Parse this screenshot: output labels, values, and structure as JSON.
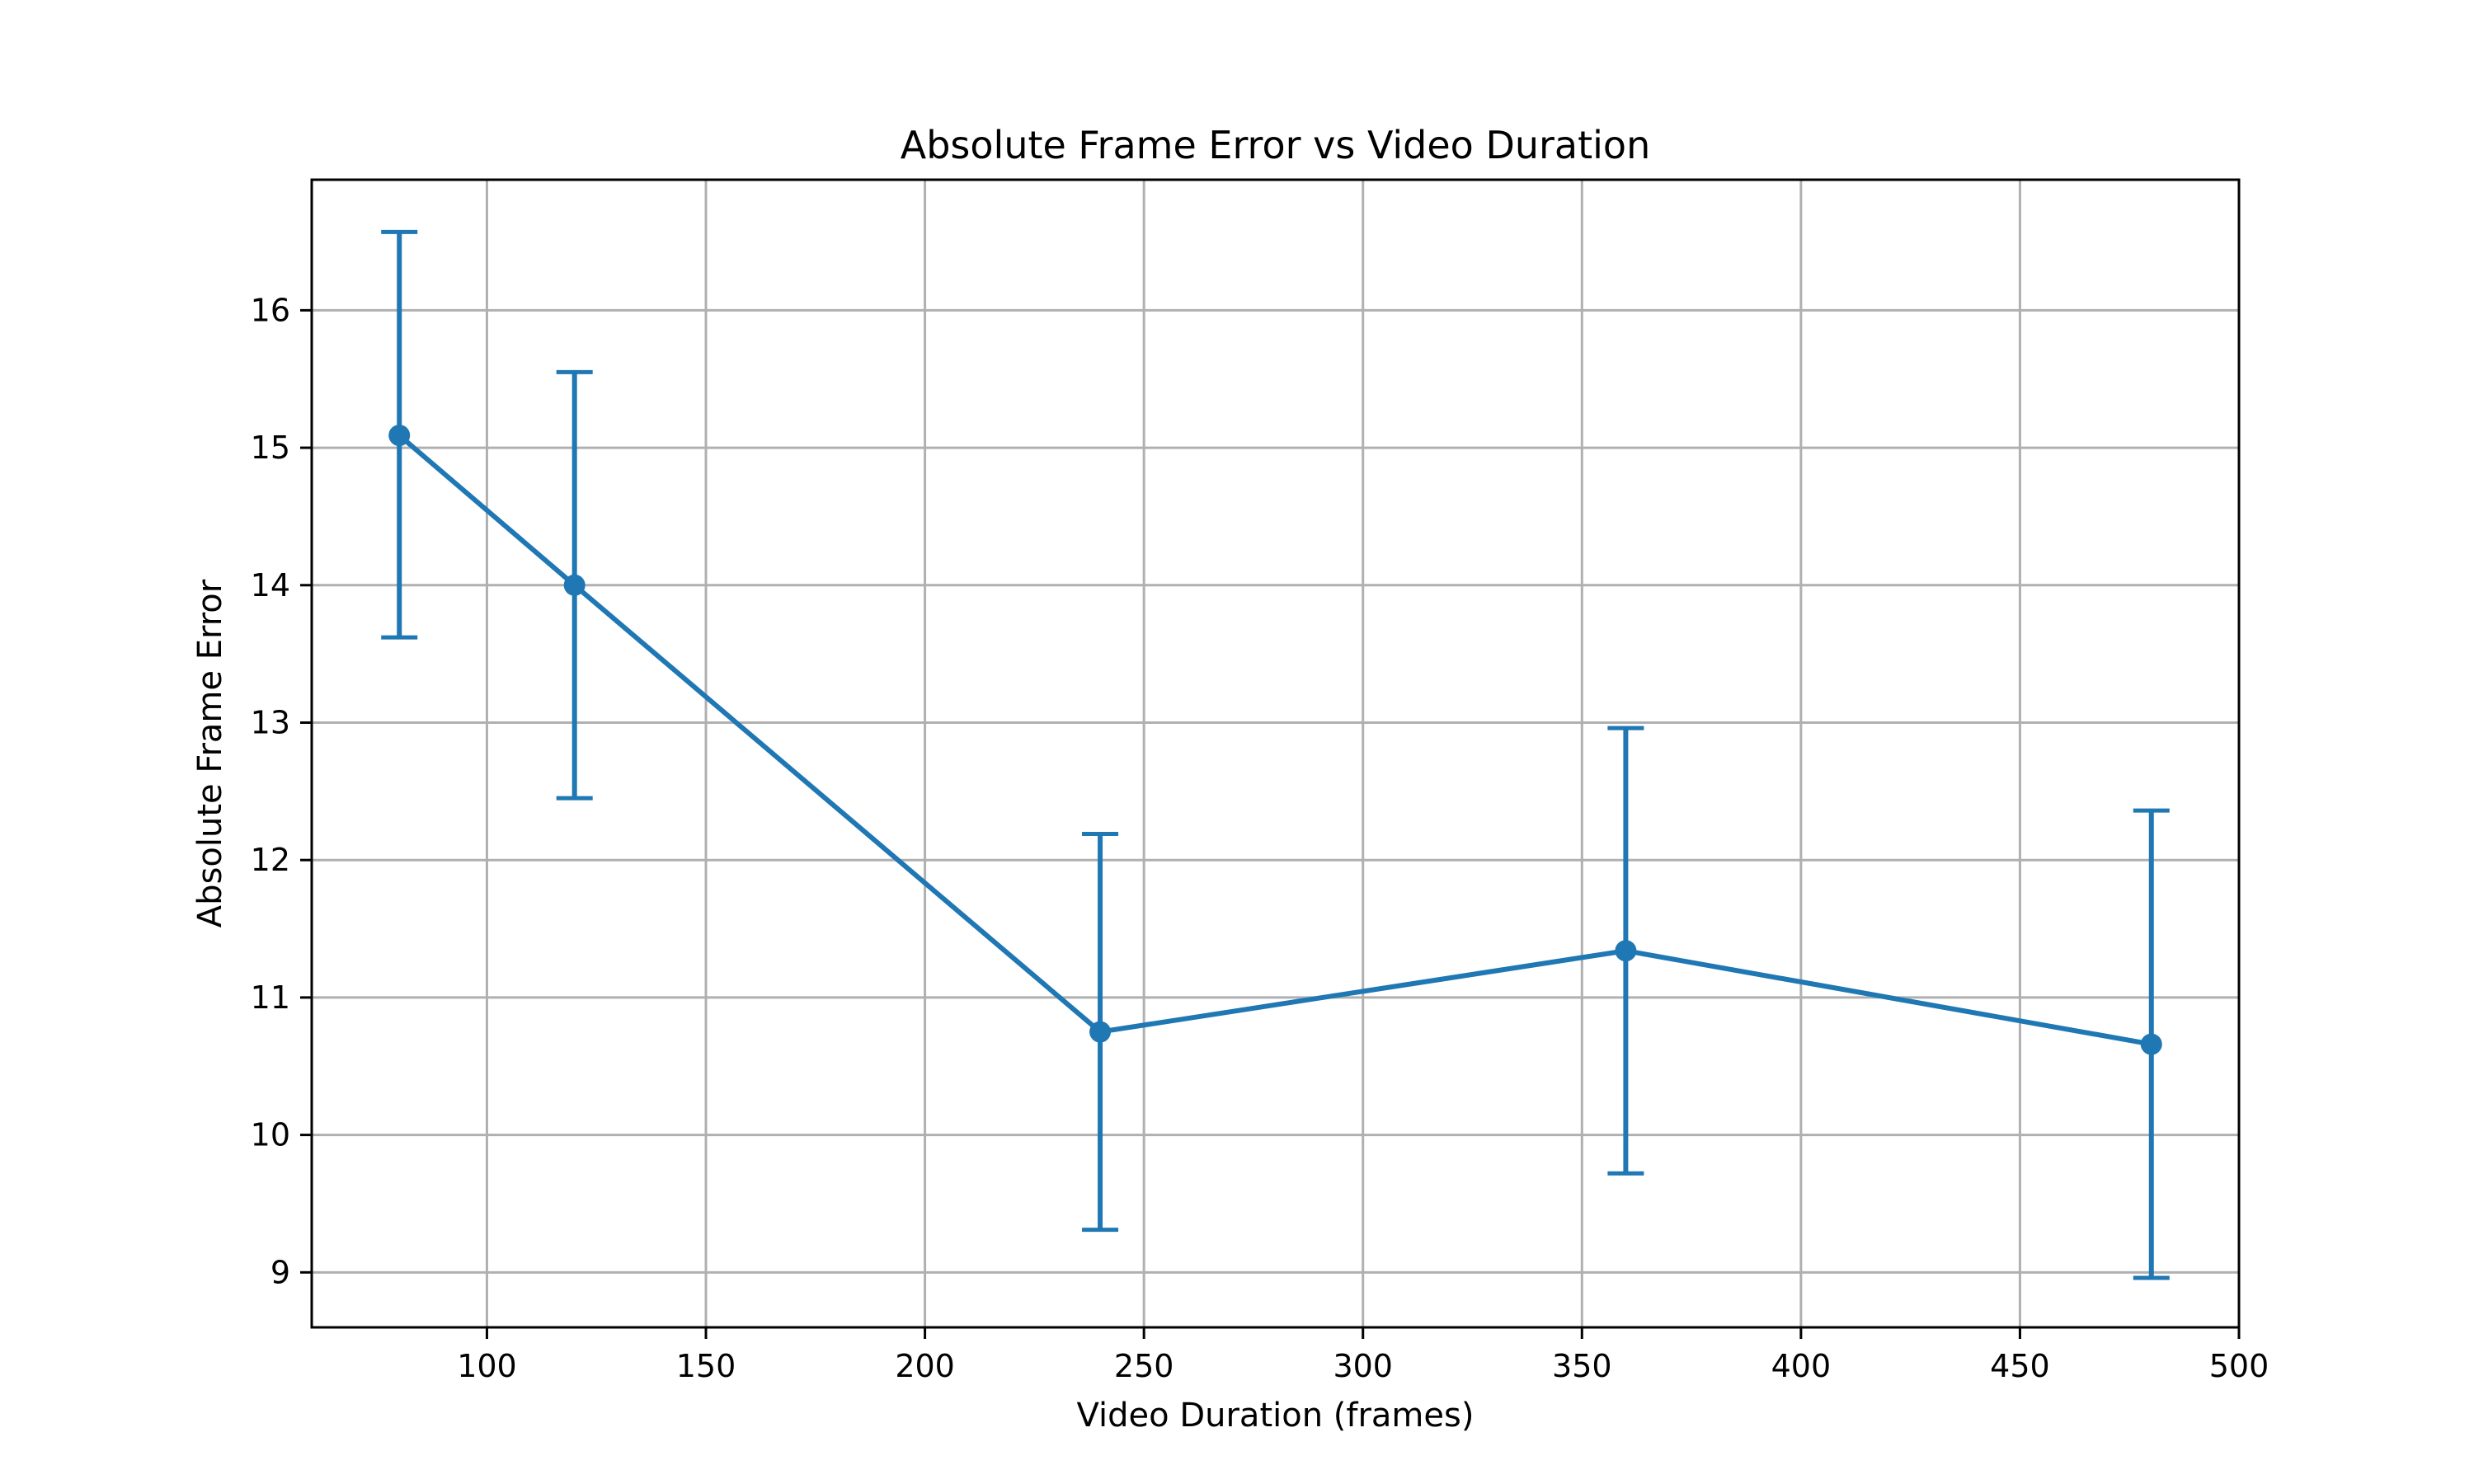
{
  "chart_data": {
    "type": "line",
    "title": "Absolute Frame Error vs Video Duration",
    "xlabel": "Video Duration (frames)",
    "ylabel": "Absolute Frame Error",
    "xlim": [
      60,
      500
    ],
    "ylim": [
      8.6,
      16.95
    ],
    "xticks": [
      100,
      150,
      200,
      250,
      300,
      350,
      400,
      450,
      500
    ],
    "yticks": [
      9,
      10,
      11,
      12,
      13,
      14,
      15,
      16
    ],
    "grid": true,
    "series": [
      {
        "x": [
          80,
          120,
          240,
          360,
          480
        ],
        "y": [
          15.09,
          14.0,
          10.75,
          11.34,
          10.66
        ],
        "yerr_lower": [
          13.62,
          12.45,
          9.31,
          9.72,
          8.96
        ],
        "yerr_upper": [
          16.57,
          15.55,
          12.19,
          12.96,
          12.36
        ],
        "color": "#1f77b4"
      }
    ]
  }
}
